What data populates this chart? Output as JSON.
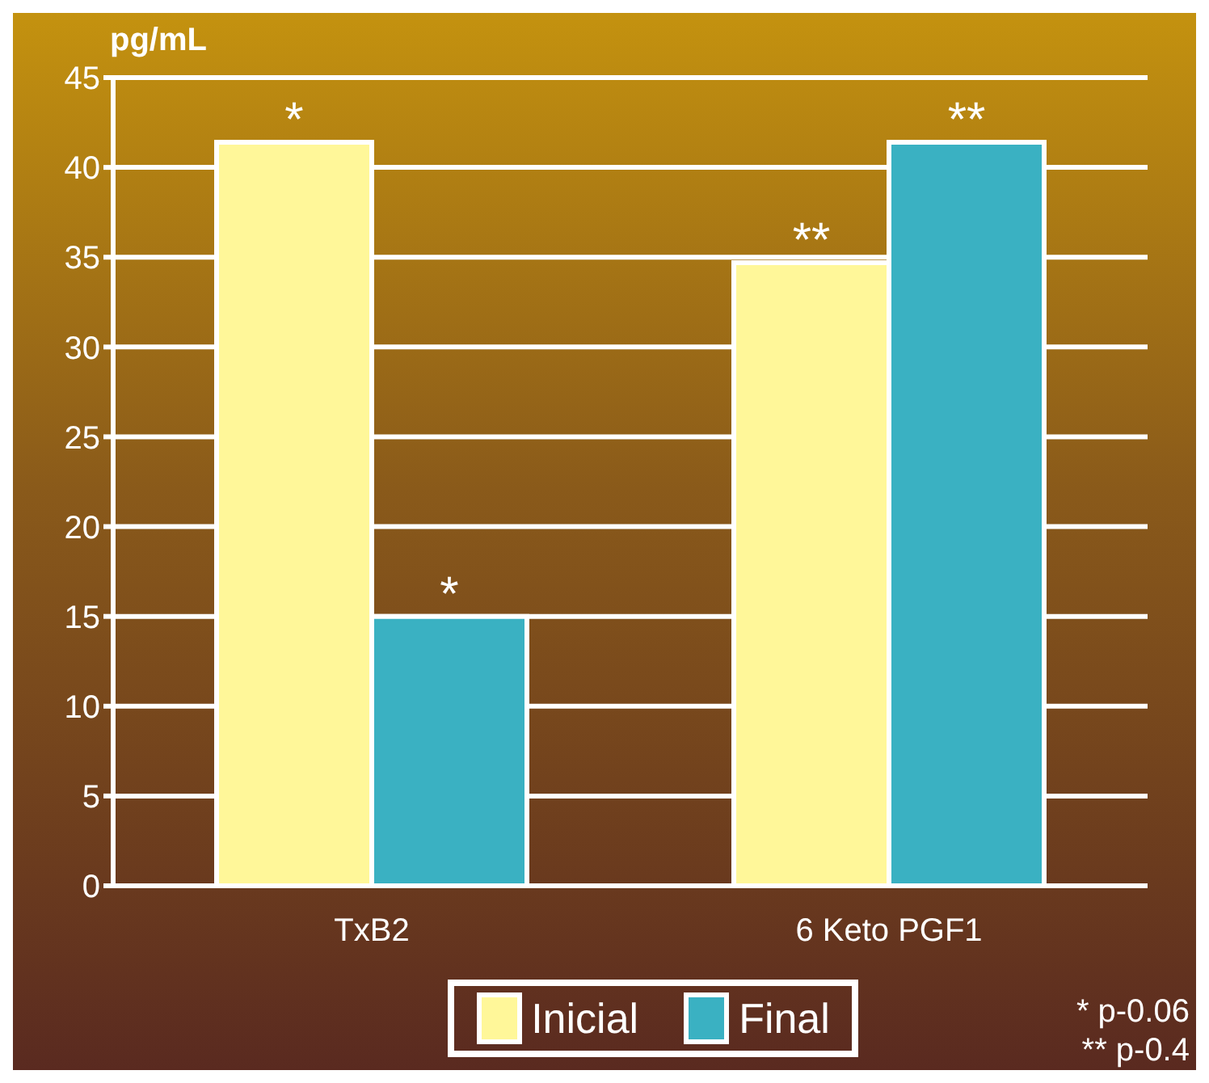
{
  "chart_data": {
    "type": "bar",
    "ylabel": "pg/mL",
    "categories": [
      "TxB2",
      "6 Keto PGF1"
    ],
    "series": [
      {
        "name": "Inicial",
        "color": "#fff799",
        "values": [
          41.4,
          34.7
        ]
      },
      {
        "name": "Final",
        "color": "#3ab1c2",
        "values": [
          15,
          41.4
        ]
      }
    ],
    "ylim": [
      0,
      45
    ],
    "yticks": [
      0,
      5,
      10,
      15,
      20,
      25,
      30,
      35,
      40,
      45
    ],
    "grid": "y",
    "legend": "bottom",
    "annotations": [
      {
        "text": "*",
        "x": "TxB2",
        "y": 41.4
      },
      {
        "text": "*",
        "x": "TxB2",
        "y": 15
      },
      {
        "text": "**",
        "x": "6 Keto PGF1",
        "y": 34.7
      },
      {
        "text": "**",
        "x": "6 Keto PGF1",
        "y": 41.4
      },
      "* p-0.06",
      "** p-0.4"
    ]
  }
}
